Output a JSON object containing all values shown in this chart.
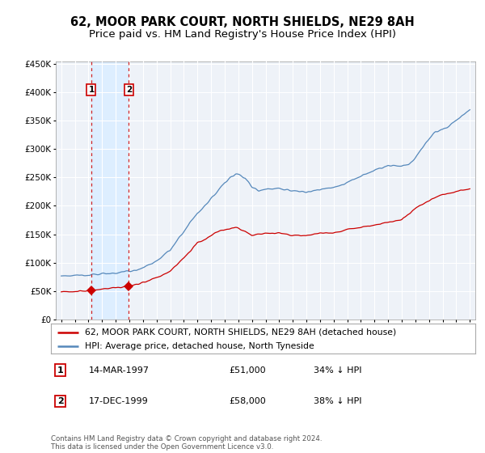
{
  "title": "62, MOOR PARK COURT, NORTH SHIELDS, NE29 8AH",
  "subtitle": "Price paid vs. HM Land Registry's House Price Index (HPI)",
  "ylabel_ticks": [
    "£0",
    "£50K",
    "£100K",
    "£150K",
    "£200K",
    "£250K",
    "£300K",
    "£350K",
    "£400K",
    "£450K"
  ],
  "ytick_values": [
    0,
    50000,
    100000,
    150000,
    200000,
    250000,
    300000,
    350000,
    400000,
    450000
  ],
  "xlim_start": 1994.6,
  "xlim_end": 2025.4,
  "ylim_max": 455000,
  "legend_line1": "62, MOOR PARK COURT, NORTH SHIELDS, NE29 8AH (detached house)",
  "legend_line2": "HPI: Average price, detached house, North Tyneside",
  "sale1_date": "14-MAR-1997",
  "sale1_price": "£51,000",
  "sale1_pct": "34% ↓ HPI",
  "sale1_year": 1997.21,
  "sale1_value": 51000,
  "sale2_date": "17-DEC-1999",
  "sale2_price": "£58,000",
  "sale2_pct": "38% ↓ HPI",
  "sale2_year": 1999.96,
  "sale2_value": 58000,
  "footer": "Contains HM Land Registry data © Crown copyright and database right 2024.\nThis data is licensed under the Open Government Licence v3.0.",
  "red_line_color": "#cc0000",
  "blue_line_color": "#5588bb",
  "span_color": "#ddeeff",
  "plot_bg": "#eef2f8",
  "vline_color": "#cc0000",
  "box_color": "#cc0000",
  "grid_color": "#ffffff",
  "title_fontsize": 10.5,
  "subtitle_fontsize": 9.5
}
